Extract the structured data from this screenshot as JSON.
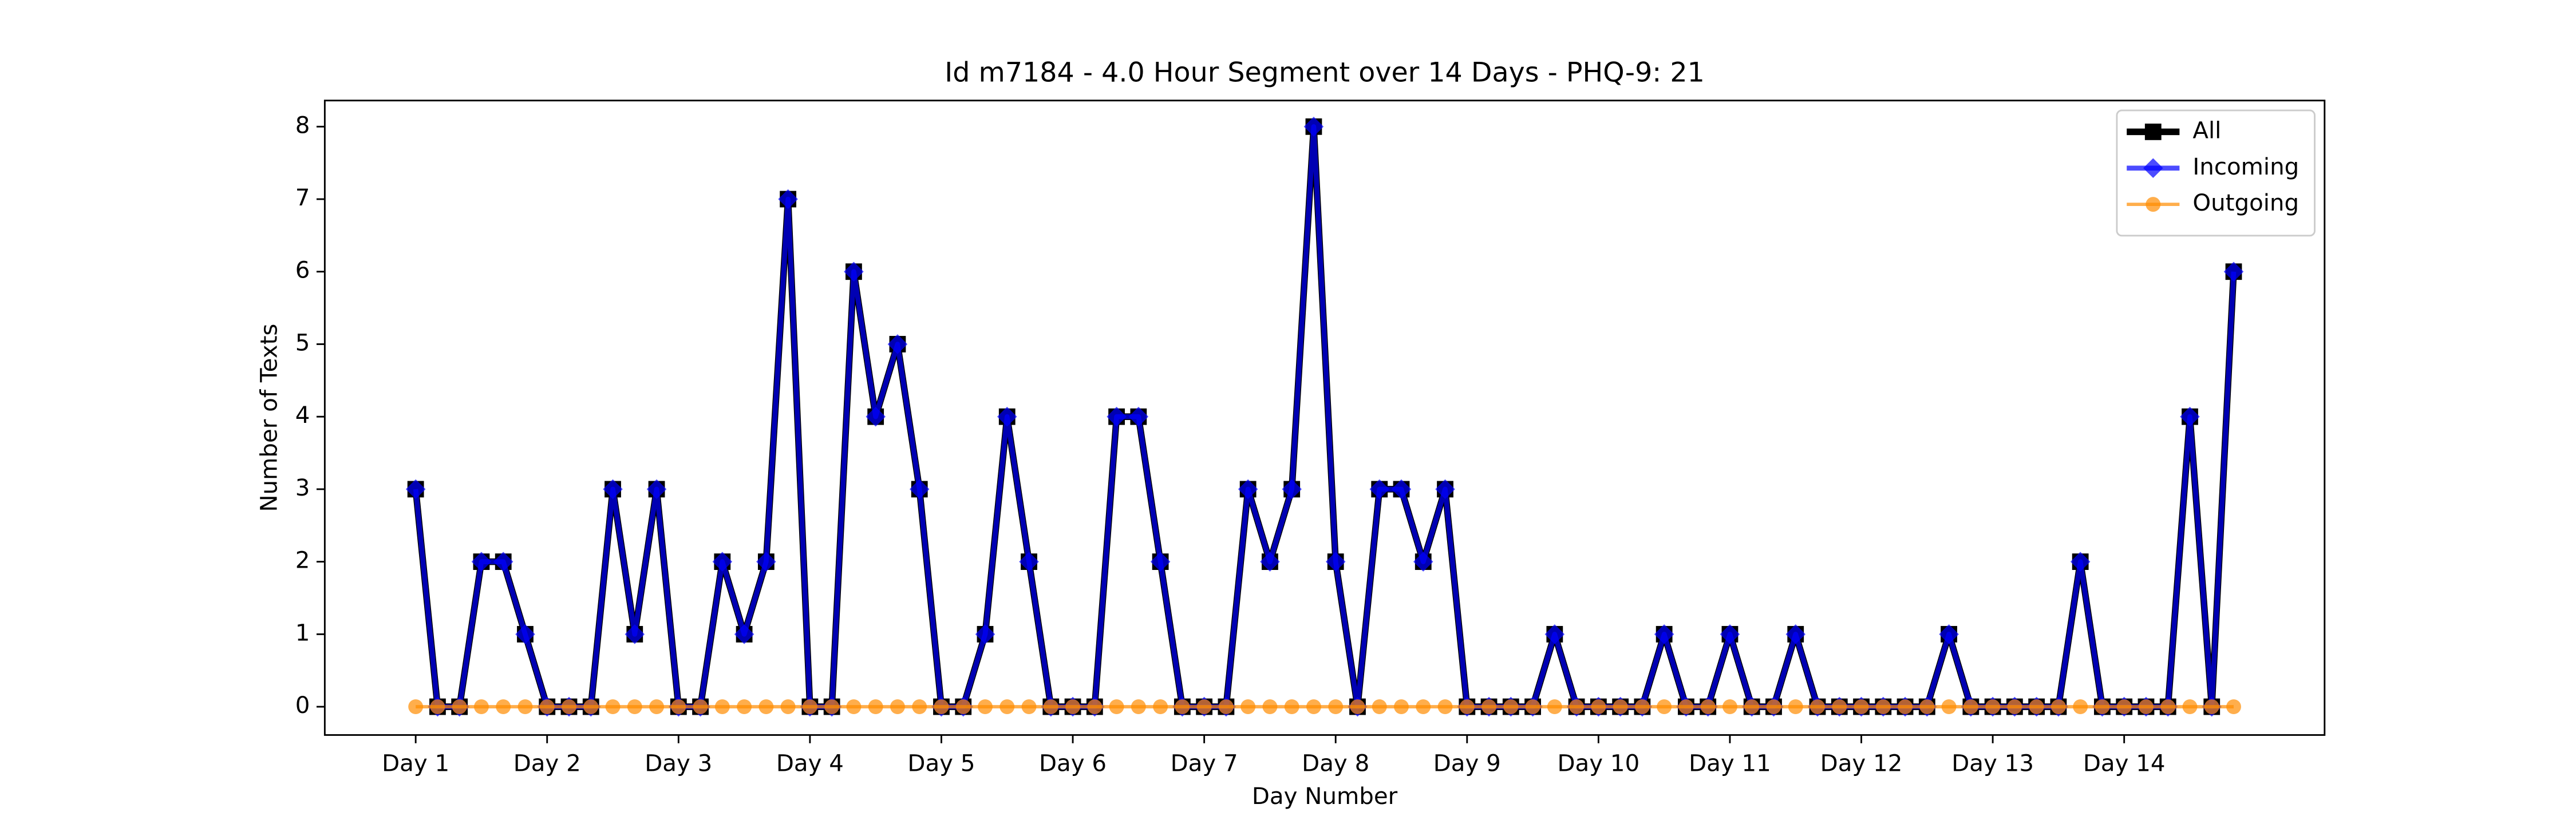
{
  "chart_data": {
    "type": "line",
    "title": "Id m7184 - 4.0 Hour Segment over 14 Days - PHQ-9: 21",
    "xlabel": "Day Number",
    "ylabel": "Number of Texts",
    "x": [
      0,
      1,
      2,
      3,
      4,
      5,
      6,
      7,
      8,
      9,
      10,
      11,
      12,
      13,
      14,
      15,
      16,
      17,
      18,
      19,
      20,
      21,
      22,
      23,
      24,
      25,
      26,
      27,
      28,
      29,
      30,
      31,
      32,
      33,
      34,
      35,
      36,
      37,
      38,
      39,
      40,
      41,
      42,
      43,
      44,
      45,
      46,
      47,
      48,
      49,
      50,
      51,
      52,
      53,
      54,
      55,
      56,
      57,
      58,
      59,
      60,
      61,
      62,
      63,
      64,
      65,
      66,
      67,
      68,
      69,
      70,
      71,
      72,
      73,
      74,
      75,
      76,
      77,
      78,
      79,
      80,
      81,
      82,
      83
    ],
    "series": [
      {
        "name": "All",
        "color": "#000000",
        "marker": "square",
        "values": [
          3,
          0,
          0,
          2,
          2,
          1,
          0,
          0,
          0,
          3,
          1,
          3,
          0,
          0,
          2,
          1,
          2,
          7,
          0,
          0,
          6,
          4,
          5,
          3,
          0,
          0,
          1,
          4,
          2,
          0,
          0,
          0,
          4,
          4,
          2,
          0,
          0,
          0,
          3,
          2,
          3,
          8,
          2,
          0,
          3,
          3,
          2,
          3,
          0,
          0,
          0,
          0,
          1,
          0,
          0,
          0,
          0,
          1,
          0,
          0,
          1,
          0,
          0,
          1,
          0,
          0,
          0,
          0,
          0,
          0,
          1,
          0,
          0,
          0,
          0,
          0,
          2,
          0,
          0,
          0,
          0,
          4,
          0,
          6
        ]
      },
      {
        "name": "Incoming",
        "color": "#0000ff",
        "marker": "diamond",
        "values": [
          3,
          0,
          0,
          2,
          2,
          1,
          0,
          0,
          0,
          3,
          1,
          3,
          0,
          0,
          2,
          1,
          2,
          7,
          0,
          0,
          6,
          4,
          5,
          3,
          0,
          0,
          1,
          4,
          2,
          0,
          0,
          0,
          4,
          4,
          2,
          0,
          0,
          0,
          3,
          2,
          3,
          8,
          2,
          0,
          3,
          3,
          2,
          3,
          0,
          0,
          0,
          0,
          1,
          0,
          0,
          0,
          0,
          1,
          0,
          0,
          1,
          0,
          0,
          1,
          0,
          0,
          0,
          0,
          0,
          0,
          1,
          0,
          0,
          0,
          0,
          0,
          2,
          0,
          0,
          0,
          0,
          4,
          0,
          6
        ]
      },
      {
        "name": "Outgoing",
        "color": "#ff8c00",
        "marker": "circle",
        "values": [
          0,
          0,
          0,
          0,
          0,
          0,
          0,
          0,
          0,
          0,
          0,
          0,
          0,
          0,
          0,
          0,
          0,
          0,
          0,
          0,
          0,
          0,
          0,
          0,
          0,
          0,
          0,
          0,
          0,
          0,
          0,
          0,
          0,
          0,
          0,
          0,
          0,
          0,
          0,
          0,
          0,
          0,
          0,
          0,
          0,
          0,
          0,
          0,
          0,
          0,
          0,
          0,
          0,
          0,
          0,
          0,
          0,
          0,
          0,
          0,
          0,
          0,
          0,
          0,
          0,
          0,
          0,
          0,
          0,
          0,
          0,
          0,
          0,
          0,
          0,
          0,
          0,
          0,
          0,
          0,
          0,
          0,
          0,
          0
        ]
      }
    ],
    "xlim": [
      -4.15,
      87.15
    ],
    "ylim": [
      -0.39,
      8.36
    ],
    "xticks": [
      {
        "value": 0,
        "label": "Day 1"
      },
      {
        "value": 6,
        "label": "Day 2"
      },
      {
        "value": 12,
        "label": "Day 3"
      },
      {
        "value": 18,
        "label": "Day 4"
      },
      {
        "value": 24,
        "label": "Day 5"
      },
      {
        "value": 30,
        "label": "Day 6"
      },
      {
        "value": 36,
        "label": "Day 7"
      },
      {
        "value": 42,
        "label": "Day 8"
      },
      {
        "value": 48,
        "label": "Day 9"
      },
      {
        "value": 54,
        "label": "Day 10"
      },
      {
        "value": 60,
        "label": "Day 11"
      },
      {
        "value": 66,
        "label": "Day 12"
      },
      {
        "value": 72,
        "label": "Day 13"
      },
      {
        "value": 78,
        "label": "Day 14"
      }
    ],
    "yticks": [
      0,
      1,
      2,
      3,
      4,
      5,
      6,
      7,
      8
    ],
    "legend": "upper right",
    "grid": false
  }
}
